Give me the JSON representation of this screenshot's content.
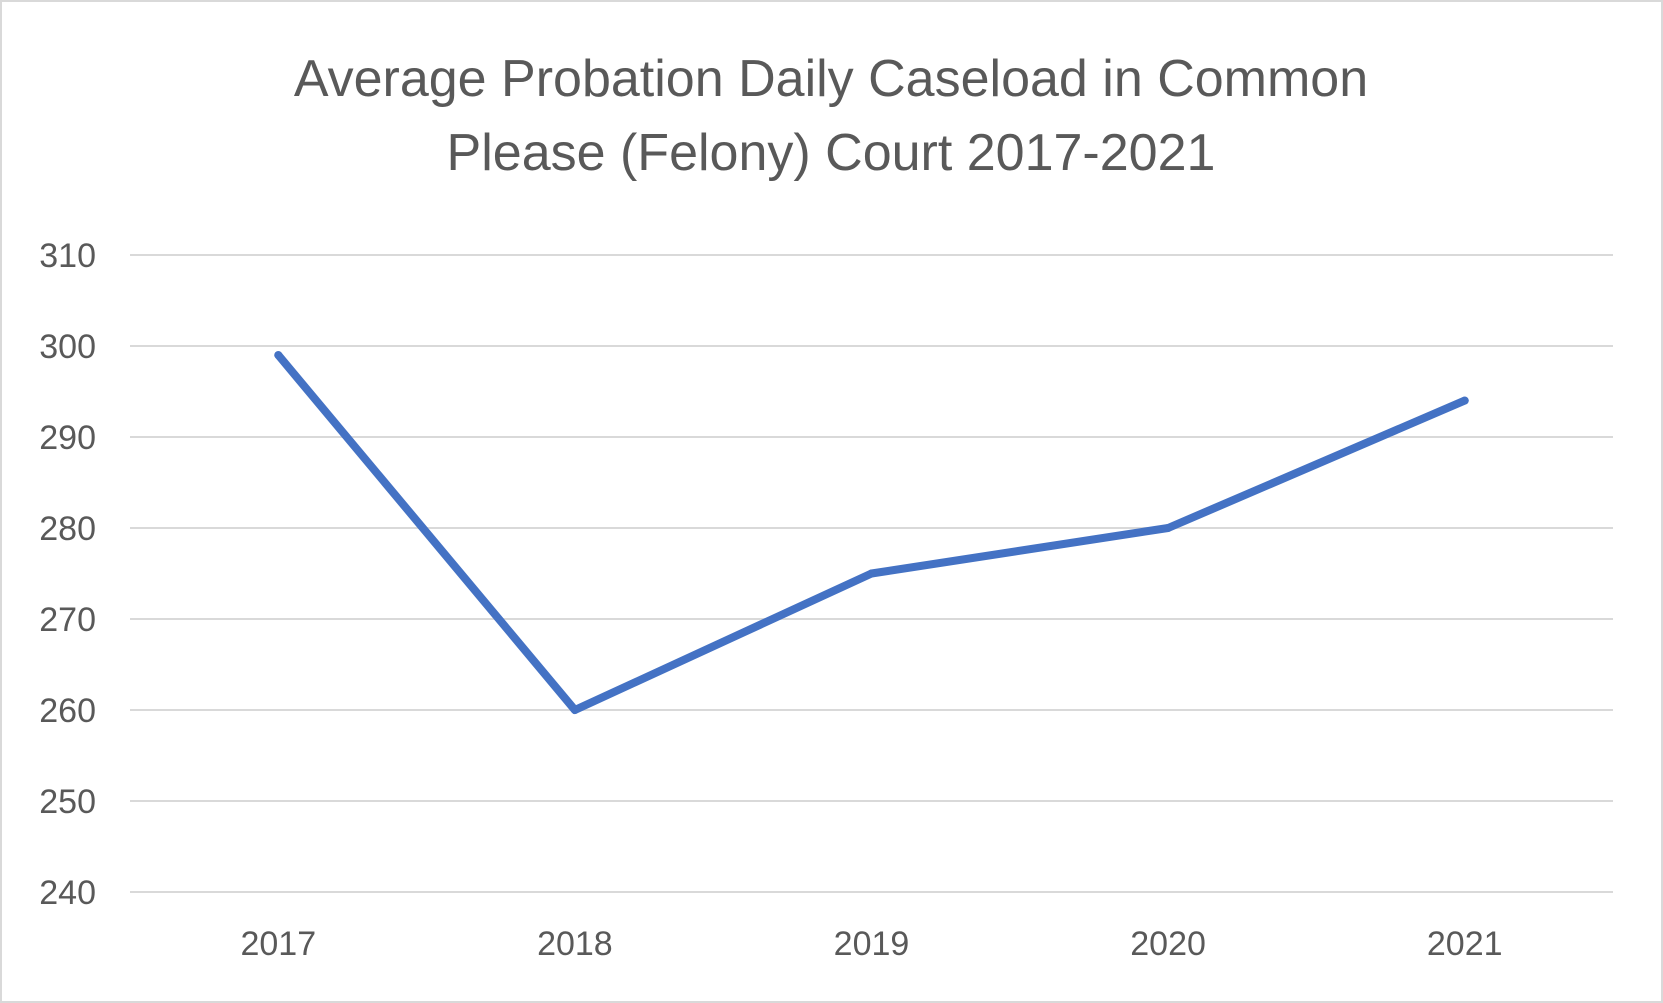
{
  "chart_data": {
    "type": "line",
    "title_lines": [
      "Average Probation Daily Caseload in Common",
      "Please (Felony) Court 2017-2021"
    ],
    "xlabel": "",
    "ylabel": "",
    "categories": [
      "2017",
      "2018",
      "2019",
      "2020",
      "2021"
    ],
    "series": [
      {
        "values": [
          299,
          260,
          275,
          280,
          294
        ],
        "color": "#4472c4"
      }
    ],
    "yticks": [
      240,
      250,
      260,
      270,
      280,
      290,
      300,
      310
    ],
    "ylim": [
      240,
      310
    ],
    "grid": true,
    "legend": "none"
  }
}
